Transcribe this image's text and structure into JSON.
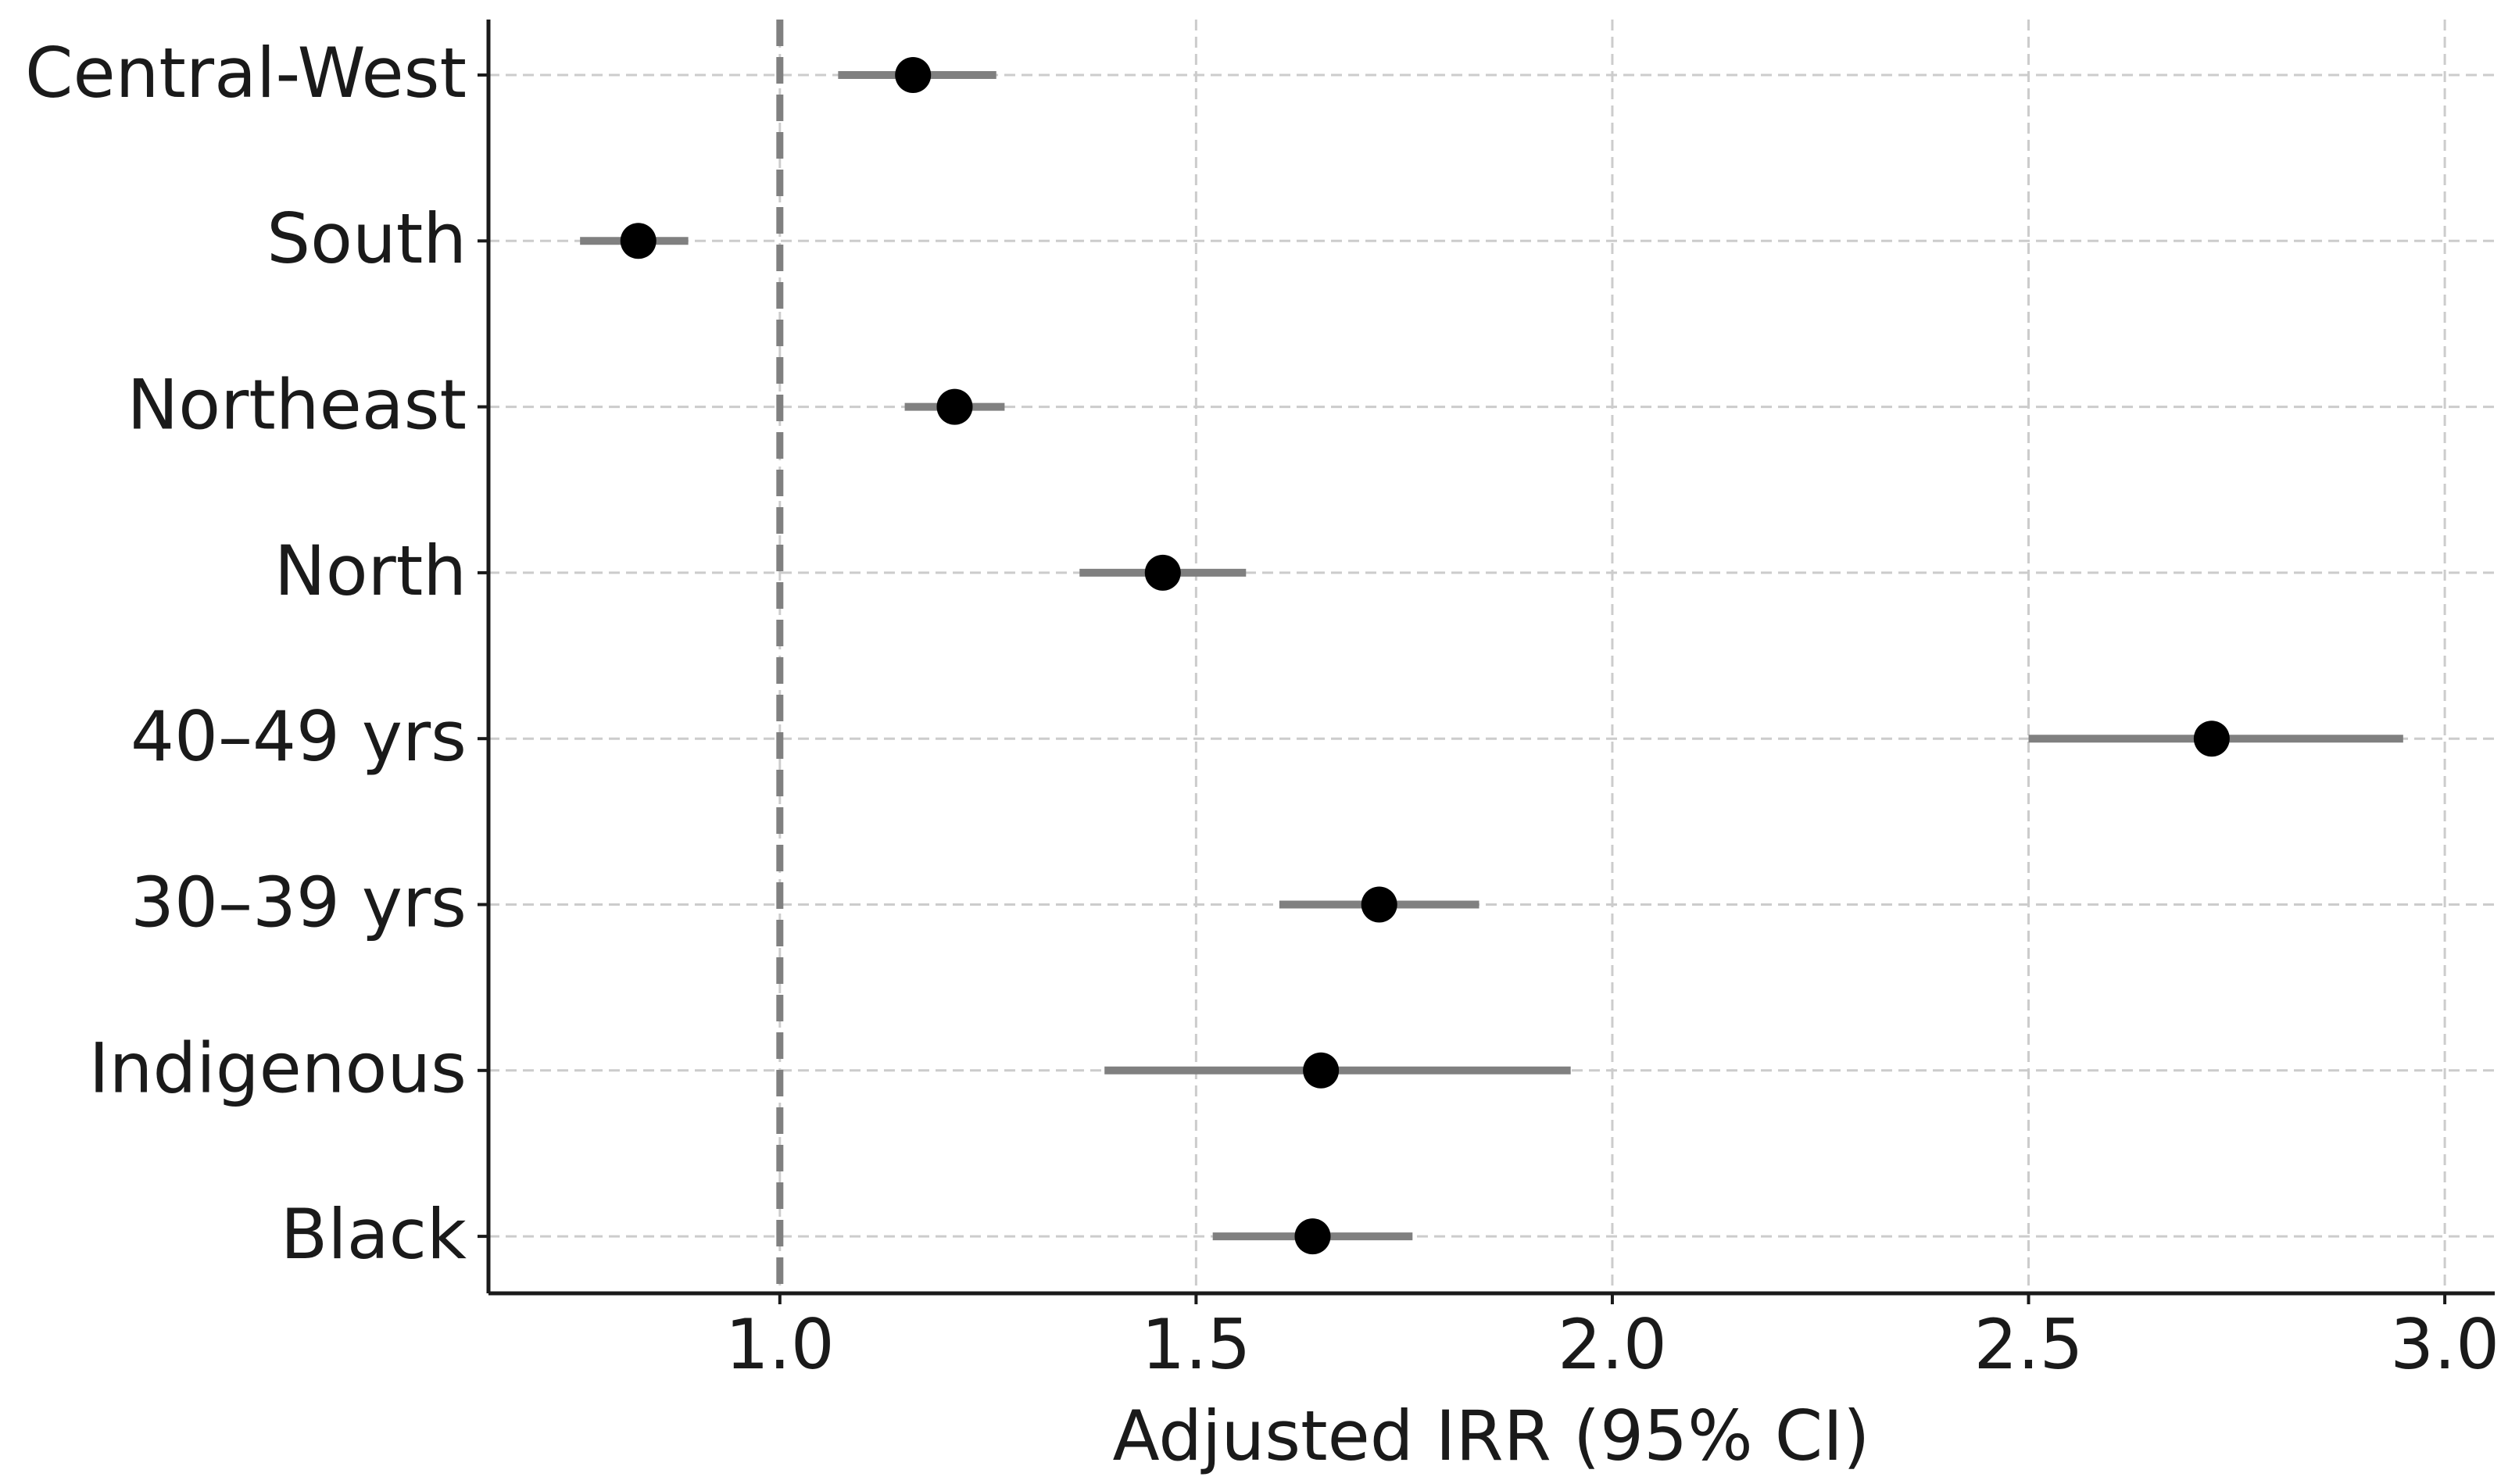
{
  "chart_data": {
    "type": "forest",
    "xlabel": "Adjusted IRR (95% CI)",
    "categories": [
      "Central-West",
      "South",
      "Northeast",
      "North",
      "40–49 yrs",
      "30–39 yrs",
      "Indigenous",
      "Black"
    ],
    "values": [
      1.16,
      0.83,
      1.21,
      1.46,
      2.72,
      1.72,
      1.65,
      1.64
    ],
    "lower": [
      1.07,
      0.76,
      1.15,
      1.36,
      2.5,
      1.6,
      1.39,
      1.52
    ],
    "upper": [
      1.26,
      0.89,
      1.27,
      1.56,
      2.95,
      1.84,
      1.95,
      1.76
    ],
    "color": "#000000",
    "ci_color": "#808080",
    "reference_line": 1,
    "xlim": [
      0.65,
      3.06
    ],
    "xticks": [
      {
        "value": 1,
        "label": "1.0"
      },
      1.5,
      {
        "value": 2,
        "label": "2.0"
      },
      2.5,
      {
        "value": 3,
        "label": "3.0"
      }
    ],
    "grid": true
  }
}
